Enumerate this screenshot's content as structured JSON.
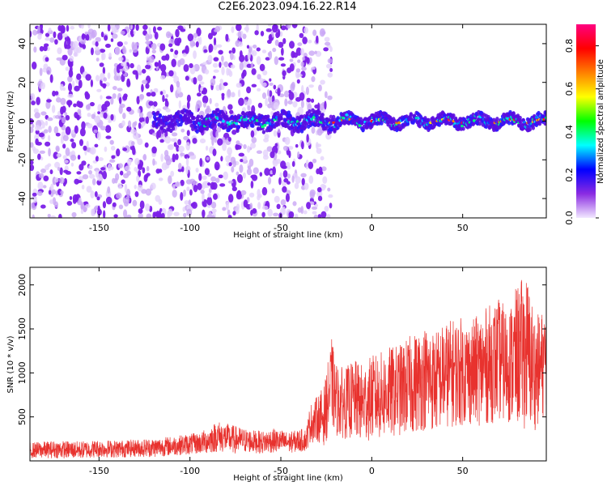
{
  "title": "C2E6.2023.094.16.22.R14",
  "chart_data": [
    {
      "type": "heatmap",
      "xlabel": "Height of straight line (km)",
      "ylabel": "Frequency (Hz)",
      "xlim": [
        -188,
        96
      ],
      "ylim": [
        -50,
        50
      ],
      "xticks": [
        -150,
        -100,
        -50,
        0,
        50
      ],
      "yticks": [
        -40,
        -20,
        0,
        20,
        40
      ],
      "colorbar": {
        "label": "Normalized spectral amplitude",
        "range": [
          0.0,
          0.9
        ],
        "ticks": [
          0.0,
          0.2,
          0.4,
          0.6,
          0.8
        ],
        "colormap": [
          "#f2e8ff",
          "#8a2be2",
          "#0000ff",
          "#00ffff",
          "#00ff00",
          "#ffff00",
          "#ff8000",
          "#ff0000",
          "#ff0080"
        ]
      },
      "description_regions": {
        "ridge_center_hz": 0,
        "noise_extent_km": [
          -188,
          -22
        ],
        "ridge_start_km": -120
      }
    },
    {
      "type": "line",
      "xlabel": "Height of straight line (km)",
      "ylabel": "SNR (10 * v/v)",
      "xlim": [
        -188,
        96
      ],
      "ylim": [
        0,
        2200
      ],
      "xticks": [
        -150,
        -100,
        -50,
        0,
        50
      ],
      "yticks": [
        500,
        1000,
        1500,
        2000
      ],
      "color": "#e8322e",
      "series": [
        {
          "x": [
            -188,
            -175,
            -160,
            -150,
            -140,
            -130,
            -120,
            -110,
            -100,
            -95,
            -90,
            -85,
            -80,
            -75,
            -70,
            -65,
            -60,
            -55,
            -50,
            -45,
            -40,
            -36,
            -34,
            -30,
            -26,
            -22,
            -20,
            -15,
            -10,
            -5,
            0,
            5,
            10,
            15,
            20,
            25,
            30,
            35,
            40,
            45,
            50,
            55,
            60,
            65,
            70,
            75,
            80,
            85,
            90,
            96
          ],
          "values": [
            120,
            130,
            125,
            140,
            135,
            145,
            150,
            170,
            190,
            200,
            230,
            280,
            260,
            240,
            230,
            220,
            210,
            230,
            220,
            210,
            230,
            240,
            420,
            480,
            520,
            900,
            700,
            650,
            700,
            650,
            720,
            740,
            780,
            800,
            850,
            900,
            950,
            900,
            980,
            1000,
            1020,
            1000,
            1050,
            1100,
            1150,
            1080,
            1200,
            1250,
            1000,
            1150
          ],
          "amplitude": [
            90,
            100,
            100,
            100,
            100,
            100,
            110,
            110,
            120,
            120,
            150,
            180,
            170,
            160,
            140,
            130,
            130,
            140,
            130,
            120,
            130,
            130,
            220,
            260,
            350,
            500,
            420,
            400,
            450,
            450,
            480,
            500,
            520,
            520,
            560,
            580,
            600,
            580,
            600,
            620,
            620,
            600,
            650,
            680,
            700,
            650,
            800,
            900,
            650,
            600
          ]
        }
      ]
    }
  ]
}
